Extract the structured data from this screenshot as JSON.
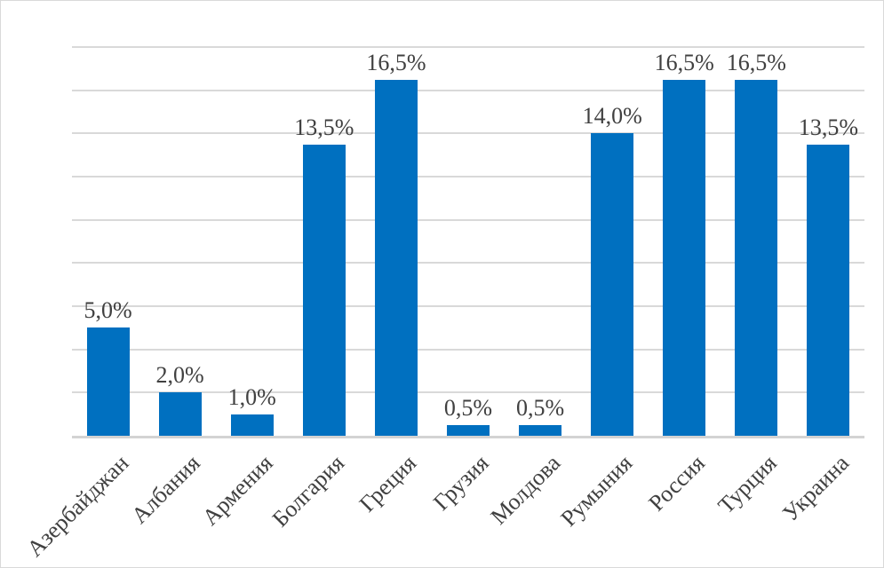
{
  "chart_data": {
    "type": "bar",
    "title": "",
    "xlabel": "",
    "ylabel": "",
    "categories": [
      "Азербайджан",
      "Албания",
      "Армения",
      "Болгария",
      "Греция",
      "Грузия",
      "Молдова",
      "Румыния",
      "Россия",
      "Турция",
      "Украина"
    ],
    "values": [
      5.0,
      2.0,
      1.0,
      13.5,
      16.5,
      0.5,
      0.5,
      14.0,
      16.5,
      16.5,
      13.5
    ],
    "data_labels": [
      "5,0%",
      "2,0%",
      "1,0%",
      "13,5%",
      "16,5%",
      "0,5%",
      "0,5%",
      "14,0%",
      "16,5%",
      "16,5%",
      "13,5%"
    ],
    "ylim": [
      0,
      18
    ],
    "gridline_step": 2,
    "grid": true,
    "legend": "none",
    "y_axis_tick_labels_visible": false,
    "category_label_rotation_deg": -45,
    "colors": {
      "bar": "#0070C0",
      "gridline": "#D9D9D9",
      "axis_line": "#D3D3D3",
      "label_text": "#404040",
      "background": "#FFFFFF",
      "frame_border": "#D9D9D9"
    }
  }
}
